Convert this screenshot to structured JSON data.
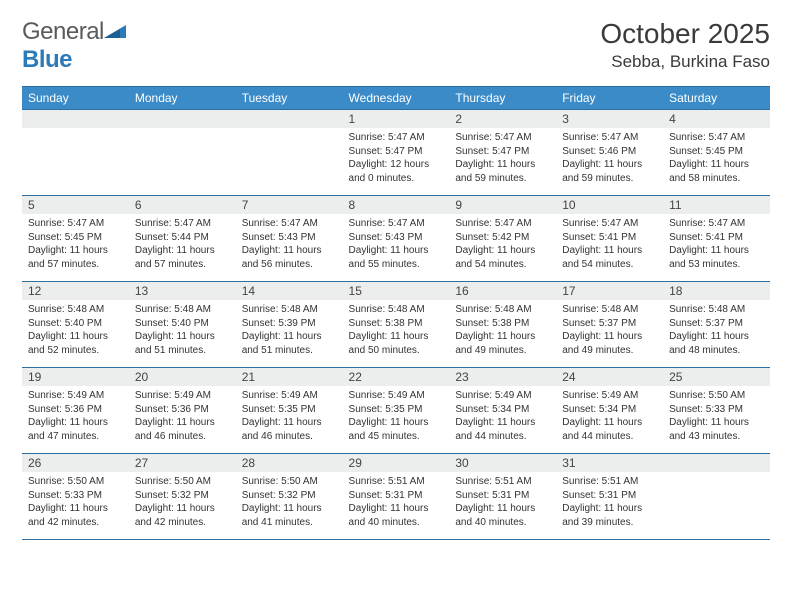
{
  "logo": {
    "general": "General",
    "blue": "Blue"
  },
  "title": "October 2025",
  "location": "Sebba, Burkina Faso",
  "colors": {
    "header_bg": "#3b8bc8",
    "header_border": "#2c6fa3",
    "daynum_bg": "#eceded",
    "logo_blue": "#2c7ab8"
  },
  "dayNames": [
    "Sunday",
    "Monday",
    "Tuesday",
    "Wednesday",
    "Thursday",
    "Friday",
    "Saturday"
  ],
  "firstDayOffset": 3,
  "days": [
    {
      "n": 1,
      "sr": "5:47 AM",
      "ss": "5:47 PM",
      "dl": "12 hours and 0 minutes."
    },
    {
      "n": 2,
      "sr": "5:47 AM",
      "ss": "5:47 PM",
      "dl": "11 hours and 59 minutes."
    },
    {
      "n": 3,
      "sr": "5:47 AM",
      "ss": "5:46 PM",
      "dl": "11 hours and 59 minutes."
    },
    {
      "n": 4,
      "sr": "5:47 AM",
      "ss": "5:45 PM",
      "dl": "11 hours and 58 minutes."
    },
    {
      "n": 5,
      "sr": "5:47 AM",
      "ss": "5:45 PM",
      "dl": "11 hours and 57 minutes."
    },
    {
      "n": 6,
      "sr": "5:47 AM",
      "ss": "5:44 PM",
      "dl": "11 hours and 57 minutes."
    },
    {
      "n": 7,
      "sr": "5:47 AM",
      "ss": "5:43 PM",
      "dl": "11 hours and 56 minutes."
    },
    {
      "n": 8,
      "sr": "5:47 AM",
      "ss": "5:43 PM",
      "dl": "11 hours and 55 minutes."
    },
    {
      "n": 9,
      "sr": "5:47 AM",
      "ss": "5:42 PM",
      "dl": "11 hours and 54 minutes."
    },
    {
      "n": 10,
      "sr": "5:47 AM",
      "ss": "5:41 PM",
      "dl": "11 hours and 54 minutes."
    },
    {
      "n": 11,
      "sr": "5:47 AM",
      "ss": "5:41 PM",
      "dl": "11 hours and 53 minutes."
    },
    {
      "n": 12,
      "sr": "5:48 AM",
      "ss": "5:40 PM",
      "dl": "11 hours and 52 minutes."
    },
    {
      "n": 13,
      "sr": "5:48 AM",
      "ss": "5:40 PM",
      "dl": "11 hours and 51 minutes."
    },
    {
      "n": 14,
      "sr": "5:48 AM",
      "ss": "5:39 PM",
      "dl": "11 hours and 51 minutes."
    },
    {
      "n": 15,
      "sr": "5:48 AM",
      "ss": "5:38 PM",
      "dl": "11 hours and 50 minutes."
    },
    {
      "n": 16,
      "sr": "5:48 AM",
      "ss": "5:38 PM",
      "dl": "11 hours and 49 minutes."
    },
    {
      "n": 17,
      "sr": "5:48 AM",
      "ss": "5:37 PM",
      "dl": "11 hours and 49 minutes."
    },
    {
      "n": 18,
      "sr": "5:48 AM",
      "ss": "5:37 PM",
      "dl": "11 hours and 48 minutes."
    },
    {
      "n": 19,
      "sr": "5:49 AM",
      "ss": "5:36 PM",
      "dl": "11 hours and 47 minutes."
    },
    {
      "n": 20,
      "sr": "5:49 AM",
      "ss": "5:36 PM",
      "dl": "11 hours and 46 minutes."
    },
    {
      "n": 21,
      "sr": "5:49 AM",
      "ss": "5:35 PM",
      "dl": "11 hours and 46 minutes."
    },
    {
      "n": 22,
      "sr": "5:49 AM",
      "ss": "5:35 PM",
      "dl": "11 hours and 45 minutes."
    },
    {
      "n": 23,
      "sr": "5:49 AM",
      "ss": "5:34 PM",
      "dl": "11 hours and 44 minutes."
    },
    {
      "n": 24,
      "sr": "5:49 AM",
      "ss": "5:34 PM",
      "dl": "11 hours and 44 minutes."
    },
    {
      "n": 25,
      "sr": "5:50 AM",
      "ss": "5:33 PM",
      "dl": "11 hours and 43 minutes."
    },
    {
      "n": 26,
      "sr": "5:50 AM",
      "ss": "5:33 PM",
      "dl": "11 hours and 42 minutes."
    },
    {
      "n": 27,
      "sr": "5:50 AM",
      "ss": "5:32 PM",
      "dl": "11 hours and 42 minutes."
    },
    {
      "n": 28,
      "sr": "5:50 AM",
      "ss": "5:32 PM",
      "dl": "11 hours and 41 minutes."
    },
    {
      "n": 29,
      "sr": "5:51 AM",
      "ss": "5:31 PM",
      "dl": "11 hours and 40 minutes."
    },
    {
      "n": 30,
      "sr": "5:51 AM",
      "ss": "5:31 PM",
      "dl": "11 hours and 40 minutes."
    },
    {
      "n": 31,
      "sr": "5:51 AM",
      "ss": "5:31 PM",
      "dl": "11 hours and 39 minutes."
    }
  ],
  "labels": {
    "sunrise": "Sunrise:",
    "sunset": "Sunset:",
    "daylight": "Daylight:"
  }
}
